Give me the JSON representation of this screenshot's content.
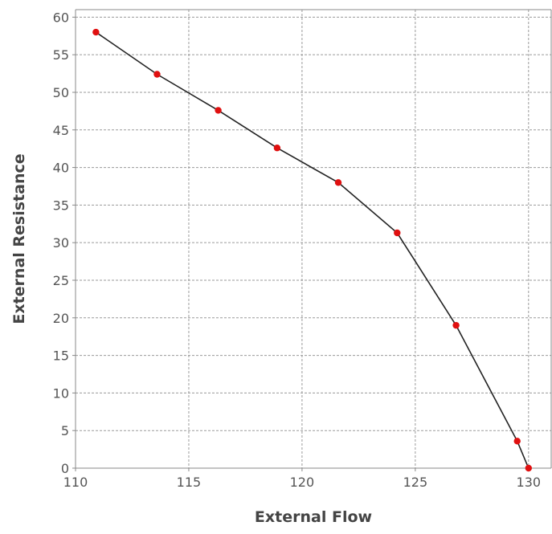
{
  "chart_data": {
    "type": "line",
    "title": "",
    "xlabel": "External Flow",
    "ylabel": "External Resistance",
    "xlim": [
      110,
      131
    ],
    "ylim": [
      0,
      61
    ],
    "xticks": [
      110,
      115,
      120,
      125,
      130
    ],
    "yticks": [
      0,
      5,
      10,
      15,
      20,
      25,
      30,
      35,
      40,
      45,
      50,
      55,
      60
    ],
    "grid": true,
    "legend": "none",
    "series": [
      {
        "points": [
          {
            "x": 110.9,
            "y": 58.0
          },
          {
            "x": 113.6,
            "y": 52.4
          },
          {
            "x": 116.3,
            "y": 47.6
          },
          {
            "x": 118.9,
            "y": 42.6
          },
          {
            "x": 121.6,
            "y": 38.0
          },
          {
            "x": 124.2,
            "y": 31.3
          },
          {
            "x": 126.8,
            "y": 19.0
          },
          {
            "x": 129.5,
            "y": 3.6
          },
          {
            "x": 130.0,
            "y": 0.0
          }
        ]
      }
    ],
    "colors": {
      "line": "#222222",
      "marker": "#e01010",
      "grid": "#9a9a9a",
      "axis": "#888888",
      "tick_text": "#555555",
      "title_text": "#444444"
    }
  }
}
